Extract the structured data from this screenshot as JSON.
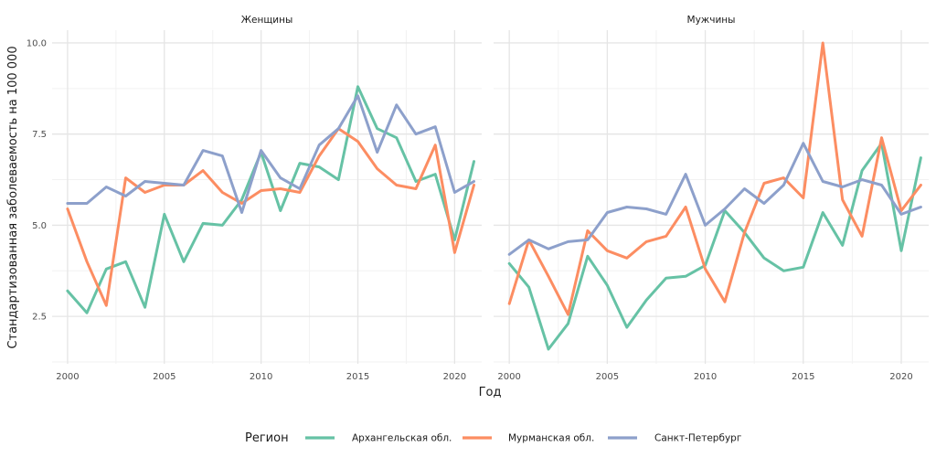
{
  "chart_data": {
    "type": "line",
    "xlabel": "Год",
    "ylabel": "Стандартизованная заболеваемость на 100 000",
    "xlim": [
      1999.2,
      2021.4
    ],
    "ylim": [
      1.2,
      10.35
    ],
    "x_ticks": [
      2000,
      2005,
      2010,
      2015,
      2020
    ],
    "y_ticks": [
      2.5,
      5.0,
      7.5,
      10.0
    ],
    "y_tick_labels": [
      "2.5",
      "5.0",
      "7.5",
      "10.0"
    ],
    "grid": true,
    "legend": {
      "title": "Регион",
      "position": "bottom",
      "entries": [
        "Архангельская обл.",
        "Мурманская обл.",
        "Санкт-Петербург"
      ]
    },
    "x": [
      2000,
      2001,
      2002,
      2003,
      2004,
      2005,
      2006,
      2007,
      2008,
      2009,
      2010,
      2011,
      2012,
      2013,
      2014,
      2015,
      2016,
      2017,
      2018,
      2019,
      2020,
      2021
    ],
    "panels": [
      {
        "title": "Женщины",
        "series": [
          {
            "name": "Архангельская обл.",
            "color": "#66c2a5",
            "values": [
              3.2,
              2.6,
              3.8,
              4.0,
              2.75,
              5.3,
              4.0,
              5.05,
              5.0,
              5.7,
              7.0,
              5.4,
              6.7,
              6.6,
              6.25,
              8.8,
              7.65,
              7.4,
              6.2,
              6.4,
              4.6,
              6.75
            ]
          },
          {
            "name": "Мурманская обл.",
            "color": "#fc8d62",
            "values": [
              5.45,
              4.0,
              2.8,
              6.3,
              5.9,
              6.1,
              6.1,
              6.5,
              5.9,
              5.6,
              5.95,
              6.0,
              5.9,
              6.9,
              7.65,
              7.3,
              6.55,
              6.1,
              6.0,
              7.2,
              4.25,
              6.1
            ]
          },
          {
            "name": "Санкт-Петербург",
            "color": "#8da0cb",
            "values": [
              5.6,
              5.6,
              6.05,
              5.8,
              6.2,
              6.15,
              6.1,
              7.05,
              6.9,
              5.35,
              7.05,
              6.3,
              6.0,
              7.2,
              7.65,
              8.55,
              7.0,
              8.3,
              7.5,
              7.7,
              5.9,
              6.2
            ]
          }
        ]
      },
      {
        "title": "Мужчины",
        "series": [
          {
            "name": "Архангельская обл.",
            "color": "#66c2a5",
            "values": [
              3.95,
              3.3,
              1.6,
              2.3,
              4.15,
              3.35,
              2.2,
              2.95,
              3.55,
              3.6,
              3.9,
              5.4,
              4.8,
              4.1,
              3.75,
              3.85,
              5.35,
              4.45,
              6.5,
              7.25,
              4.3,
              6.85
            ]
          },
          {
            "name": "Мурманская обл.",
            "color": "#fc8d62",
            "values": [
              2.85,
              4.6,
              3.6,
              2.55,
              4.85,
              4.3,
              4.1,
              4.55,
              4.7,
              5.5,
              3.8,
              2.9,
              4.8,
              6.15,
              6.3,
              5.75,
              10.0,
              5.7,
              4.7,
              7.4,
              5.4,
              6.1
            ]
          },
          {
            "name": "Санкт-Петербург",
            "color": "#8da0cb",
            "values": [
              4.2,
              4.6,
              4.35,
              4.55,
              4.6,
              5.35,
              5.5,
              5.45,
              5.3,
              6.4,
              5.0,
              5.45,
              6.0,
              5.6,
              6.1,
              7.25,
              6.2,
              6.05,
              6.25,
              6.1,
              5.3,
              5.5
            ]
          }
        ]
      }
    ]
  }
}
